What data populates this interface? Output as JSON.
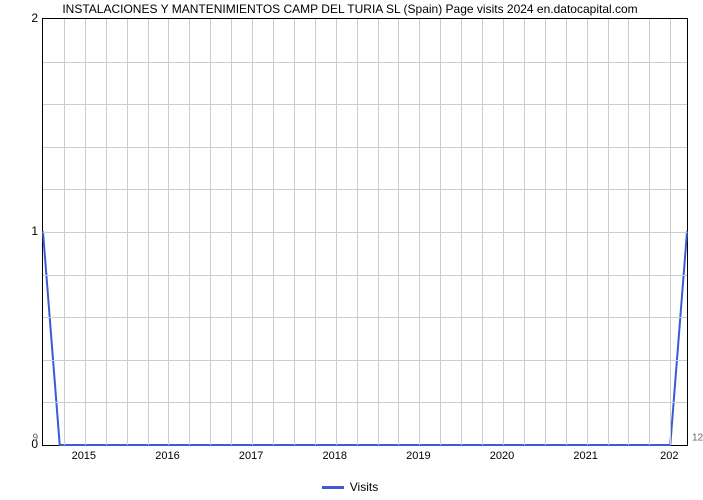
{
  "title": "INSTALACIONES Y MANTENIMIENTOS CAMP DEL TURIA SL (Spain) Page visits 2024 en.datocapital.com",
  "chart": {
    "type": "line",
    "series_label": "Visits",
    "series_color": "#3b5bd6",
    "line_width": 2,
    "background_color": "#ffffff",
    "grid_color": "#cccccc",
    "border_color": "#000000",
    "ylim": [
      0,
      2
    ],
    "yticks": [
      0,
      1,
      2
    ],
    "y_minor_count": 4,
    "xlim": [
      2014.5,
      2022.2
    ],
    "xticks": [
      2015,
      2016,
      2017,
      2018,
      2019,
      2020,
      2021
    ],
    "xtick_last_label": "202",
    "x_minor_per_major": 4,
    "small_left": "9",
    "small_right": "12",
    "data_x": [
      2014.5,
      2014.7,
      2022.0,
      2022.2
    ],
    "data_y": [
      1.0,
      0.0,
      0.0,
      1.0
    ],
    "title_fontsize": 12,
    "tick_fontsize": 12
  }
}
